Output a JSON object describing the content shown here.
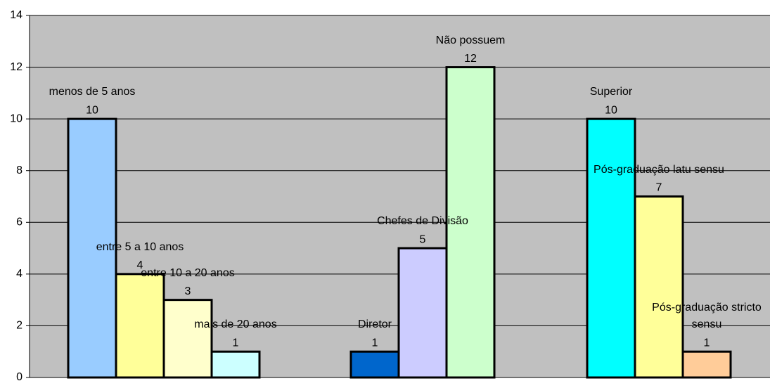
{
  "chart_data": {
    "type": "bar",
    "ylim": [
      0,
      14
    ],
    "yticks": [
      0,
      2,
      4,
      6,
      8,
      10,
      12,
      14
    ],
    "grid": true,
    "background": "#c0c0c0",
    "groups": [
      {
        "bars": [
          {
            "name": "menos de 5 anos",
            "value": 10,
            "color": "#99ccff"
          },
          {
            "name": "entre 5 a 10 anos",
            "value": 4,
            "color": "#ffff99"
          },
          {
            "name": "entre 10 a 20 anos",
            "value": 3,
            "color": "#ffffcc"
          },
          {
            "name": "mais de 20 anos",
            "value": 1,
            "color": "#ccffff"
          }
        ]
      },
      {
        "bars": [
          {
            "name": "Diretor",
            "value": 1,
            "color": "#0066cc"
          },
          {
            "name": "Chefes de Divisão",
            "value": 5,
            "color": "#ccccff"
          },
          {
            "name": "Não possuem",
            "value": 12,
            "color": "#ccffcc"
          }
        ]
      },
      {
        "bars": [
          {
            "name": "Superior",
            "value": 10,
            "color": "#00ffff"
          },
          {
            "name": "Pós-graduação latu sensu",
            "value": 7,
            "color": "#ffff99"
          },
          {
            "name": "Pós-graduação stricto sensu",
            "value": 1,
            "color": "#ffcc99"
          }
        ]
      }
    ]
  }
}
